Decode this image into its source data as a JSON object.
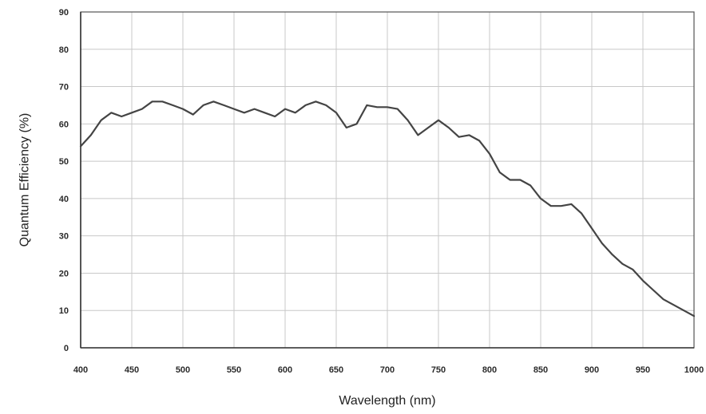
{
  "chart_data": {
    "type": "line",
    "title": "",
    "xlabel": "Wavelength (nm)",
    "ylabel": "Quantum Efficiency (%)",
    "xlim": [
      400,
      1000
    ],
    "ylim": [
      0,
      90
    ],
    "x_ticks": [
      400,
      450,
      500,
      550,
      600,
      650,
      700,
      750,
      800,
      850,
      900,
      950,
      1000
    ],
    "y_ticks": [
      0,
      10,
      20,
      30,
      40,
      50,
      60,
      70,
      80,
      90
    ],
    "grid": true,
    "legend": "none",
    "series": [
      {
        "color": "#444444",
        "x": [
          400,
          410,
          420,
          430,
          440,
          450,
          460,
          470,
          480,
          490,
          500,
          510,
          520,
          530,
          540,
          550,
          560,
          570,
          580,
          590,
          600,
          610,
          620,
          630,
          640,
          650,
          660,
          670,
          680,
          690,
          700,
          710,
          720,
          730,
          740,
          750,
          760,
          770,
          780,
          790,
          800,
          810,
          820,
          830,
          840,
          850,
          860,
          870,
          880,
          890,
          900,
          910,
          920,
          930,
          940,
          950,
          960,
          970,
          980,
          990,
          1000
        ],
        "y": [
          54,
          57,
          61,
          63,
          62,
          63,
          64,
          66,
          66,
          65,
          64,
          62.5,
          65,
          66,
          65,
          64,
          63,
          64,
          63,
          62,
          64,
          63,
          65,
          66,
          65,
          63,
          59,
          60,
          65,
          64.5,
          64.5,
          64,
          61,
          57,
          59,
          61,
          59,
          56.5,
          57,
          55.5,
          52,
          47,
          45,
          45,
          43.5,
          40,
          38,
          38,
          38.5,
          36,
          32,
          28,
          25,
          22.5,
          21,
          18,
          15.5,
          13,
          11.5,
          10,
          8.5
        ]
      }
    ]
  }
}
